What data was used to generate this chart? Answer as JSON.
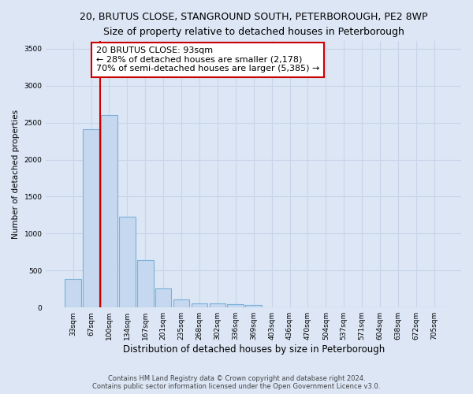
{
  "title1": "20, BRUTUS CLOSE, STANGROUND SOUTH, PETERBOROUGH, PE2 8WP",
  "title2": "Size of property relative to detached houses in Peterborough",
  "xlabel": "Distribution of detached houses by size in Peterborough",
  "ylabel": "Number of detached properties",
  "categories": [
    "33sqm",
    "67sqm",
    "100sqm",
    "134sqm",
    "167sqm",
    "201sqm",
    "235sqm",
    "268sqm",
    "302sqm",
    "336sqm",
    "369sqm",
    "403sqm",
    "436sqm",
    "470sqm",
    "504sqm",
    "537sqm",
    "571sqm",
    "604sqm",
    "638sqm",
    "672sqm",
    "705sqm"
  ],
  "values": [
    390,
    2410,
    2600,
    1230,
    640,
    260,
    110,
    60,
    55,
    45,
    35,
    0,
    0,
    0,
    0,
    0,
    0,
    0,
    0,
    0,
    0
  ],
  "bar_color": "#c5d8f0",
  "bar_edge_color": "#7ab0d8",
  "vline_color": "#cc0000",
  "vline_index": 2,
  "annotation_text": "20 BRUTUS CLOSE: 93sqm\n← 28% of detached houses are smaller (2,178)\n70% of semi-detached houses are larger (5,385) →",
  "annotation_box_facecolor": "#ffffff",
  "annotation_box_edgecolor": "#cc0000",
  "ylim": [
    0,
    3600
  ],
  "yticks": [
    0,
    500,
    1000,
    1500,
    2000,
    2500,
    3000,
    3500
  ],
  "footer1": "Contains HM Land Registry data © Crown copyright and database right 2024.",
  "footer2": "Contains public sector information licensed under the Open Government Licence v3.0.",
  "bg_color": "#dce6f5",
  "grid_color": "#c8d4e8",
  "title1_fontsize": 9,
  "title2_fontsize": 8.5,
  "xlabel_fontsize": 8.5,
  "ylabel_fontsize": 7.5,
  "tick_fontsize": 6.5,
  "annotation_fontsize": 8,
  "footer_fontsize": 6
}
